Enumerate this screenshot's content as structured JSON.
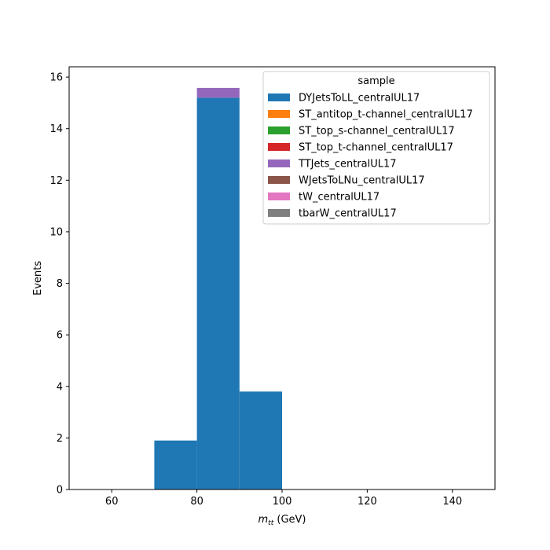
{
  "chart_data": {
    "type": "bar",
    "subtype": "stacked-histogram",
    "xlabel_main": "m",
    "xlabel_sub": "tt",
    "xlabel_unit": " (GeV)",
    "ylabel": "Events",
    "xlim": [
      50,
      150
    ],
    "ylim": [
      0,
      16.4
    ],
    "xticks": [
      60,
      80,
      100,
      120,
      140
    ],
    "yticks": [
      0,
      2,
      4,
      6,
      8,
      10,
      12,
      14,
      16
    ],
    "bins": [
      [
        50,
        60
      ],
      [
        60,
        70
      ],
      [
        70,
        80
      ],
      [
        80,
        90
      ],
      [
        90,
        100
      ],
      [
        100,
        110
      ],
      [
        110,
        120
      ],
      [
        120,
        130
      ],
      [
        130,
        140
      ],
      [
        140,
        150
      ]
    ],
    "series": [
      {
        "name": "DYJetsToLL_centralUL17",
        "color": "#1f77b4",
        "values": [
          0,
          0,
          1.9,
          15.2,
          3.8,
          0,
          0,
          0,
          0,
          0
        ]
      },
      {
        "name": "ST_antitop_t-channel_centralUL17",
        "color": "#ff7f0e",
        "values": [
          0,
          0,
          0,
          0,
          0,
          0,
          0,
          0,
          0,
          0
        ]
      },
      {
        "name": "ST_top_s-channel_centralUL17",
        "color": "#2ca02c",
        "values": [
          0,
          0,
          0,
          0,
          0,
          0,
          0,
          0,
          0,
          0
        ]
      },
      {
        "name": "ST_top_t-channel_centralUL17",
        "color": "#d62728",
        "values": [
          0,
          0,
          0,
          0,
          0,
          0,
          0,
          0,
          0,
          0
        ]
      },
      {
        "name": "TTJets_centralUL17",
        "color": "#9467bd",
        "values": [
          0,
          0,
          0,
          0.38,
          0,
          0,
          0,
          0,
          0,
          0
        ]
      },
      {
        "name": "WJetsToLNu_centralUL17",
        "color": "#8c564b",
        "values": [
          0,
          0,
          0,
          0,
          0,
          0,
          0,
          0,
          0,
          0
        ]
      },
      {
        "name": "tW_centralUL17",
        "color": "#e377c2",
        "values": [
          0,
          0,
          0,
          0,
          0,
          0,
          0,
          0,
          0,
          0
        ]
      },
      {
        "name": "tbarW_centralUL17",
        "color": "#7f7f7f",
        "values": [
          0,
          0,
          0,
          0,
          0,
          0,
          0,
          0,
          0,
          0
        ]
      }
    ],
    "legend": {
      "title": "sample",
      "placement": "top-right"
    },
    "grid": false
  }
}
